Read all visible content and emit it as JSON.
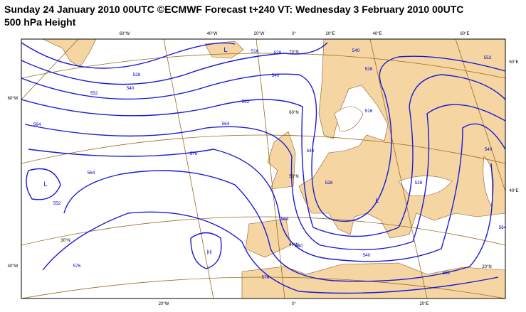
{
  "header": {
    "title": "Sunday 24 January 2010 00UTC ©ECMWF Forecast t+240 VT: Wednesday 3 February 2010 00UTC",
    "subtitle": "500 hPa Height"
  },
  "map": {
    "top_labels": [
      "60°W",
      "40°W",
      "20°W",
      "0°",
      "20°E",
      "40°E",
      "60°E"
    ],
    "bottom_labels": [
      "20°W",
      "0°",
      "20°E"
    ],
    "left_labels": [
      "60°W",
      "40°W"
    ],
    "right_labels": [
      "60°E",
      "40°E"
    ],
    "latitude_labels": [
      "70°N",
      "60°N",
      "50°N",
      "40°N",
      "30°N",
      "20°N"
    ],
    "contour_labels": [
      528,
      540,
      552,
      564,
      576,
      564,
      552,
      540,
      528,
      516,
      540,
      552,
      528,
      516,
      540,
      528,
      528,
      540,
      564,
      552,
      564,
      576,
      564,
      540,
      540,
      552,
      576
    ],
    "pressure_centers": [
      "L",
      "L",
      "L",
      "H"
    ]
  }
}
